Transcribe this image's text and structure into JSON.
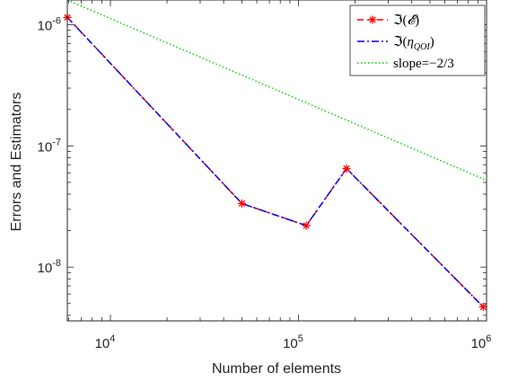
{
  "chart_data": {
    "type": "line",
    "xscale": "log",
    "yscale": "log",
    "xlim": [
      5900,
      1000000
    ],
    "ylim": [
      3.6e-09,
      1.6e-06
    ],
    "x_ticks": [
      {
        "value": 10000,
        "base": "10",
        "exp": "4"
      },
      {
        "value": 100000,
        "base": "10",
        "exp": "5"
      },
      {
        "value": 1000000,
        "base": "10",
        "exp": "6"
      }
    ],
    "y_ticks": [
      {
        "value": 1e-08,
        "base": "10",
        "exp": "-8"
      },
      {
        "value": 1e-07,
        "base": "10",
        "exp": "-7"
      },
      {
        "value": 1e-06,
        "base": "10",
        "exp": "-6"
      }
    ],
    "xlabel": "Number of elements",
    "ylabel": "Errors and Estimators",
    "legend_position": "top-right",
    "series": [
      {
        "name": "ℑ(𝓔)",
        "legend_main": "ℑ(",
        "legend_sym": "𝓔",
        "legend_sub": "",
        "legend_close": ")",
        "color": "#ff0000",
        "line": "dashed",
        "marker": "asterisk",
        "x": [
          5900,
          50000,
          110000,
          180000,
          960000
        ],
        "y": [
          1.15e-06,
          3.35e-08,
          2.2e-08,
          6.5e-08,
          4.7e-09
        ]
      },
      {
        "name": "ℑ(η_QOI)",
        "legend_main": "ℑ(",
        "legend_sym": "η",
        "legend_sub": "QOI",
        "legend_close": ")",
        "color": "#0000ff",
        "line": "dashdot",
        "marker": "none",
        "x": [
          5900,
          50000,
          110000,
          180000,
          960000
        ],
        "y": [
          1.15e-06,
          3.35e-08,
          2.2e-08,
          6.5e-08,
          4.7e-09
        ]
      },
      {
        "name": "slope=−2/3",
        "legend_main": "slope=−2/3",
        "legend_sym": "",
        "legend_sub": "",
        "legend_close": "",
        "color": "#00cc00",
        "line": "dotted",
        "marker": "none",
        "x": [
          5900,
          1000000
        ],
        "y": [
          1.6e-06,
          5.2e-08
        ]
      }
    ]
  }
}
